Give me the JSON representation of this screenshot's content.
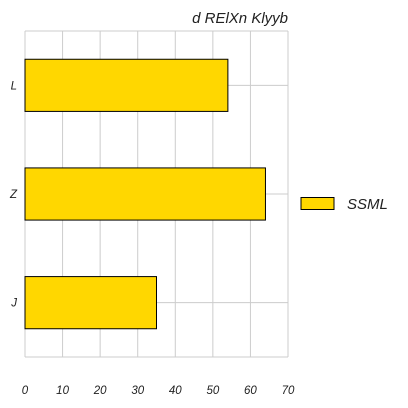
{
  "chart_data": {
    "type": "bar",
    "orientation": "horizontal",
    "title": "d RElXn Klyyb",
    "xlabel": "",
    "ylabel": "",
    "categories": [
      "L",
      "Z",
      "J"
    ],
    "series": [
      {
        "name": "SSML",
        "values": [
          54,
          64,
          35
        ],
        "color": "#FFD700"
      }
    ],
    "xlim": [
      0,
      70
    ],
    "xticks": [
      0,
      10,
      20,
      30,
      40,
      50,
      60,
      70
    ],
    "grid": true,
    "legend_position": "right"
  }
}
